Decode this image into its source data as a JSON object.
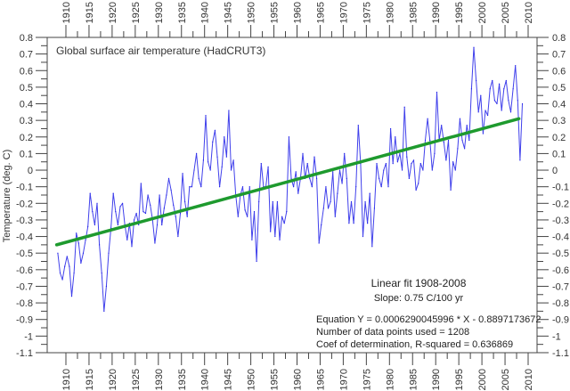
{
  "chart_data": {
    "type": "line",
    "title": "Global surface air temperature (HadCRUT3)",
    "ylabel": "Temperature (deg. C)",
    "xlabel": "",
    "xlim": [
      1906.3,
      2012.4
    ],
    "ylim": [
      -1.1,
      0.8
    ],
    "grid": false,
    "legend": "none",
    "x_ticks": [
      "1910",
      "1915",
      "1920",
      "1925",
      "1930",
      "1935",
      "1940",
      "1945",
      "1950",
      "1955",
      "1960",
      "1965",
      "1970",
      "1975",
      "1980",
      "1985",
      "1990",
      "1995",
      "2000",
      "2005",
      "2010"
    ],
    "y_ticks": [
      "0.8",
      "0.7",
      "0.6",
      "0.5",
      "0.4",
      "0.3",
      "0.2",
      "0.1",
      "0",
      "-0.1",
      "-0.2",
      "-0.3",
      "-0.4",
      "-0.5",
      "-0.6",
      "-0.7",
      "-0.8",
      "-0.9",
      "-1",
      "-1.1"
    ],
    "colors": {
      "series": "#1f1fe8",
      "fit": "#1e9a2e",
      "axis": "#444444"
    },
    "series": [
      {
        "x": [
          1908.25,
          1908.75,
          1909.25,
          1909.75,
          1910.25,
          1910.75,
          1911.25,
          1911.75,
          1912.25,
          1912.75,
          1913.25,
          1913.75,
          1914.25,
          1914.75,
          1915.25,
          1915.75,
          1916.25,
          1916.75,
          1917.25,
          1917.75,
          1918.25,
          1918.75,
          1919.25,
          1919.75,
          1920.25,
          1920.75,
          1921.25,
          1921.75,
          1922.25,
          1922.75,
          1923.25,
          1923.75,
          1924.25,
          1924.75,
          1925.25,
          1925.75,
          1926.25,
          1926.75,
          1927.25,
          1927.75,
          1928.25,
          1928.75,
          1929.25,
          1929.75,
          1930.25,
          1930.75,
          1931.25,
          1931.75,
          1932.25,
          1932.75,
          1933.25,
          1933.75,
          1934.25,
          1934.75,
          1935.25,
          1935.75,
          1936.25,
          1936.75,
          1937.25,
          1937.75,
          1938.25,
          1938.75,
          1939.25,
          1939.75,
          1940.25,
          1940.75,
          1941.25,
          1941.75,
          1942.25,
          1942.75,
          1943.25,
          1943.75,
          1944.25,
          1944.75,
          1945.25,
          1945.75,
          1946.25,
          1946.75,
          1947.25,
          1947.75,
          1948.25,
          1948.75,
          1949.25,
          1949.75,
          1950.25,
          1950.75,
          1951.25,
          1951.75,
          1952.25,
          1952.75,
          1953.25,
          1953.75,
          1954.25,
          1954.75,
          1955.25,
          1955.75,
          1956.25,
          1956.75,
          1957.25,
          1957.75,
          1958.25,
          1958.75,
          1959.25,
          1959.75,
          1960.25,
          1960.75,
          1961.25,
          1961.75,
          1962.25,
          1962.75,
          1963.25,
          1963.75,
          1964.25,
          1964.75,
          1965.25,
          1965.75,
          1966.25,
          1966.75,
          1967.25,
          1967.75,
          1968.25,
          1968.75,
          1969.25,
          1969.75,
          1970.25,
          1970.75,
          1971.25,
          1971.75,
          1972.25,
          1972.75,
          1973.25,
          1973.75,
          1974.25,
          1974.75,
          1975.25,
          1975.75,
          1976.25,
          1976.75,
          1977.25,
          1977.75,
          1978.25,
          1978.75,
          1979.25,
          1979.75,
          1980.25,
          1980.75,
          1981.25,
          1981.75,
          1982.25,
          1982.75,
          1983.25,
          1983.75,
          1984.25,
          1984.75,
          1985.25,
          1985.75,
          1986.25,
          1986.75,
          1987.25,
          1987.75,
          1988.25,
          1988.75,
          1989.25,
          1989.75,
          1990.25,
          1990.75,
          1991.25,
          1991.75,
          1992.25,
          1992.75,
          1993.25,
          1993.75,
          1994.25,
          1994.75,
          1995.25,
          1995.75,
          1996.25,
          1996.75,
          1997.25,
          1997.75,
          1998.25,
          1998.75,
          1999.25,
          1999.75,
          2000.25,
          2000.75,
          2001.25,
          2001.75,
          2002.25,
          2002.75,
          2003.25,
          2003.75,
          2004.25,
          2004.75,
          2005.25,
          2005.75,
          2006.25,
          2006.75,
          2007.25,
          2007.75,
          2008.25,
          2008.75
        ],
        "y": [
          -0.5,
          -0.62,
          -0.66,
          -0.58,
          -0.52,
          -0.58,
          -0.76,
          -0.62,
          -0.38,
          -0.44,
          -0.56,
          -0.5,
          -0.42,
          -0.34,
          -0.14,
          -0.25,
          -0.33,
          -0.2,
          -0.45,
          -0.62,
          -0.85,
          -0.7,
          -0.5,
          -0.35,
          -0.14,
          -0.25,
          -0.33,
          -0.22,
          -0.2,
          -0.33,
          -0.42,
          -0.32,
          -0.46,
          -0.3,
          -0.26,
          -0.33,
          -0.08,
          -0.25,
          -0.26,
          -0.15,
          -0.21,
          -0.3,
          -0.44,
          -0.33,
          -0.15,
          -0.33,
          -0.23,
          -0.15,
          -0.05,
          -0.12,
          -0.21,
          -0.28,
          -0.4,
          -0.26,
          -0.02,
          -0.19,
          -0.28,
          -0.1,
          -0.1,
          0.0,
          0.1,
          -0.05,
          -0.1,
          0.06,
          0.33,
          0.05,
          0.0,
          0.17,
          0.24,
          0.08,
          -0.1,
          0.02,
          0.2,
          0.08,
          0.36,
          0.0,
          0.06,
          -0.15,
          -0.28,
          -0.15,
          -0.1,
          -0.24,
          -0.28,
          -0.1,
          -0.42,
          -0.25,
          -0.55,
          -0.19,
          0.04,
          -0.1,
          -0.1,
          0.02,
          -0.37,
          -0.19,
          -0.4,
          -0.19,
          -0.42,
          -0.28,
          -0.32,
          -0.25,
          0.2,
          -0.05,
          -0.1,
          -0.01,
          -0.14,
          -0.05,
          0.1,
          -0.05,
          0.04,
          -0.05,
          -0.1,
          0.08,
          -0.05,
          -0.44,
          -0.33,
          -0.23,
          -0.1,
          -0.23,
          -0.19,
          -0.01,
          -0.28,
          -0.14,
          0.0,
          -0.08,
          0.1,
          -0.05,
          -0.32,
          -0.19,
          -0.32,
          -0.1,
          0.27,
          0.04,
          -0.4,
          -0.19,
          -0.32,
          -0.14,
          -0.46,
          -0.23,
          0.04,
          -0.05,
          -0.1,
          0.0,
          0.04,
          -0.1,
          0.25,
          0.04,
          0.2,
          0.05,
          0.1,
          0.0,
          0.38,
          0.08,
          -0.05,
          0.04,
          0.06,
          -0.12,
          -0.08,
          0.04,
          0.0,
          0.18,
          0.31,
          0.18,
          0.0,
          0.1,
          0.47,
          0.18,
          0.27,
          0.17,
          0.06,
          0.18,
          -0.12,
          0.05,
          0.0,
          0.13,
          0.31,
          0.18,
          0.13,
          0.27,
          0.18,
          0.49,
          0.74,
          0.54,
          0.35,
          0.45,
          0.22,
          0.36,
          0.33,
          0.49,
          0.54,
          0.42,
          0.4,
          0.52,
          0.36,
          0.49,
          0.54,
          0.42,
          0.35,
          0.49,
          0.63,
          0.42,
          0.06,
          0.4
        ]
      }
    ],
    "fit": {
      "x": [
        1908,
        2008
      ],
      "y": [
        -0.45,
        0.31
      ]
    },
    "annotations": {
      "fit_title": "Linear fit 1908-2008",
      "slope": "Slope: 0.75 C/100 yr",
      "equation": "Equation Y = 0.0006290045996 * X - 0.8897173672",
      "n_points": "Number of data points used = 1208",
      "r_squared": "Coef of determination, R-squared = 0.636869"
    }
  }
}
